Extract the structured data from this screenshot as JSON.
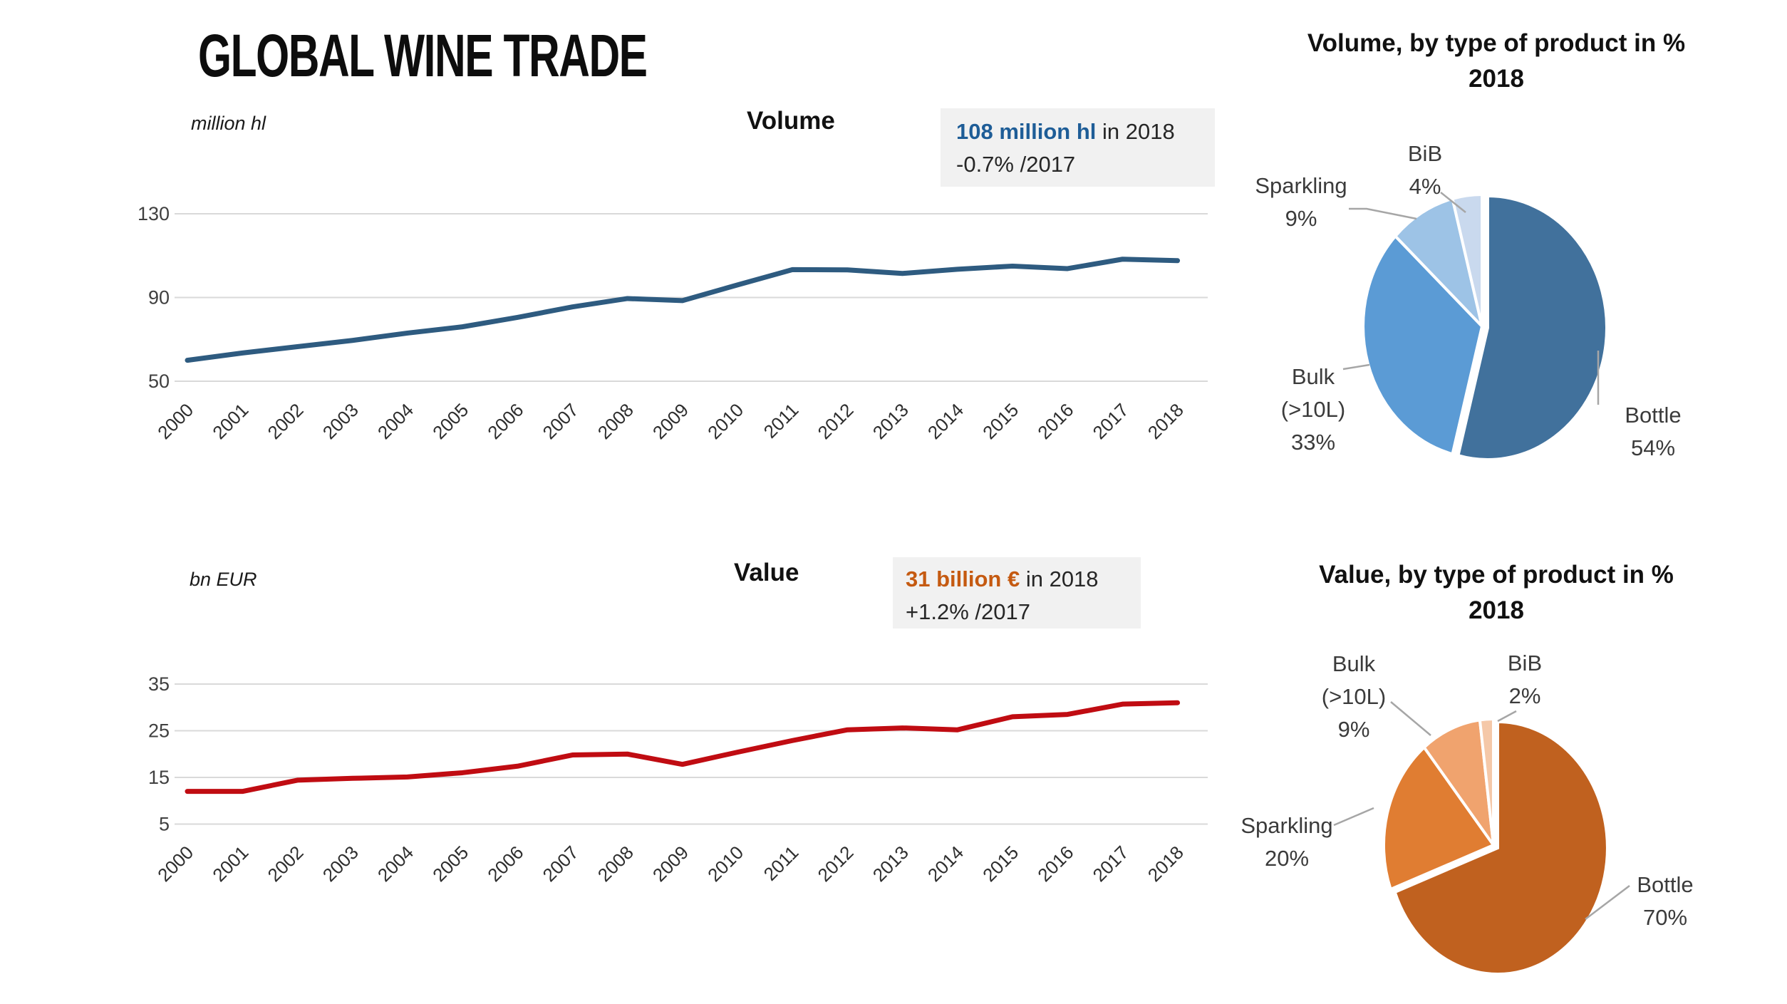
{
  "page": {
    "title": "GLOBAL WINE TRADE"
  },
  "volume_section": {
    "unit": "million hl",
    "chart_label": "Volume",
    "callout": {
      "highlight": "108 million hl",
      "suffix": " in 2018",
      "change": "-0.7% /2017",
      "highlight_color": "#1E5D97"
    }
  },
  "value_section": {
    "unit": "bn EUR",
    "chart_label": "Value",
    "callout": {
      "highlight": "31 billion €",
      "suffix": " in 2018",
      "change": "+1.2% /2017",
      "highlight_color": "#C55A11"
    }
  },
  "volume_pie_title": {
    "line1": "Volume, by type of product in %",
    "line2": "2018"
  },
  "value_pie_title": {
    "line1": "Value, by type of product in %",
    "line2": "2018"
  },
  "colors": {
    "volume_line": "#2E5B80",
    "value_line": "#C00C12",
    "gridline": "#D9D9D9",
    "leader_line": "#A6A6A6",
    "callout_bg": "#F1F1F1"
  },
  "chart_data": [
    {
      "type": "line",
      "id": "volume-line",
      "title": "Volume",
      "ylabel": "million hl",
      "x": [
        2000,
        2001,
        2002,
        2003,
        2004,
        2005,
        2006,
        2007,
        2008,
        2009,
        2010,
        2011,
        2012,
        2013,
        2014,
        2015,
        2016,
        2017,
        2018
      ],
      "values": [
        60,
        63.5,
        66.5,
        69.5,
        73,
        76,
        80.5,
        85.5,
        89.5,
        88.5,
        96,
        103.3,
        103.2,
        101.5,
        103.5,
        105,
        103.8,
        108.3,
        107.6
      ],
      "yticks": [
        130,
        90,
        50
      ],
      "ylim": [
        50,
        130
      ],
      "grid": true,
      "legend": "none",
      "line_color": "#2E5B80",
      "annotation": "108 million hl in 2018, -0.7% /2017"
    },
    {
      "type": "pie",
      "id": "volume-pie",
      "title": "Volume, by type of product in % 2018",
      "labels": [
        "Bottle",
        "Bulk (>10L)",
        "Sparkling",
        "BiB"
      ],
      "values": [
        54,
        33,
        9,
        4
      ],
      "colors": [
        "#41719C",
        "#5B9BD5",
        "#9DC3E6",
        "#C9D9EE"
      ],
      "label_lines": [
        [
          "Bottle",
          "54%"
        ],
        [
          "Bulk",
          "(>10L)",
          "33%"
        ],
        [
          "Sparkling",
          "9%"
        ],
        [
          "BiB",
          "4%"
        ]
      ]
    },
    {
      "type": "line",
      "id": "value-line",
      "title": "Value",
      "ylabel": "bn EUR",
      "x": [
        2000,
        2001,
        2002,
        2003,
        2004,
        2005,
        2006,
        2007,
        2008,
        2009,
        2010,
        2011,
        2012,
        2013,
        2014,
        2015,
        2016,
        2017,
        2018
      ],
      "values": [
        12,
        12,
        14.4,
        14.8,
        15.1,
        16,
        17.4,
        19.8,
        20,
        17.8,
        20.4,
        22.9,
        25.2,
        25.6,
        25.2,
        28,
        28.5,
        30.7,
        31
      ],
      "yticks": [
        35,
        25,
        15,
        5
      ],
      "ylim": [
        5,
        35
      ],
      "grid": true,
      "legend": "none",
      "line_color": "#C00C12",
      "annotation": "31 billion € in 2018, +1.2% /2017"
    },
    {
      "type": "pie",
      "id": "value-pie",
      "title": "Value, by type of product in % 2018",
      "labels": [
        "Bottle",
        "Sparkling",
        "Bulk (>10L)",
        "BiB"
      ],
      "values": [
        70,
        20,
        9,
        2
      ],
      "colors": [
        "#C0611F",
        "#E07D32",
        "#F0A36E",
        "#F5C8A8"
      ],
      "label_lines": [
        [
          "Bottle",
          "70%"
        ],
        [
          "Sparkling",
          "20%"
        ],
        [
          "Bulk",
          "(>10L)",
          "9%"
        ],
        [
          "BiB",
          "2%"
        ]
      ]
    }
  ]
}
